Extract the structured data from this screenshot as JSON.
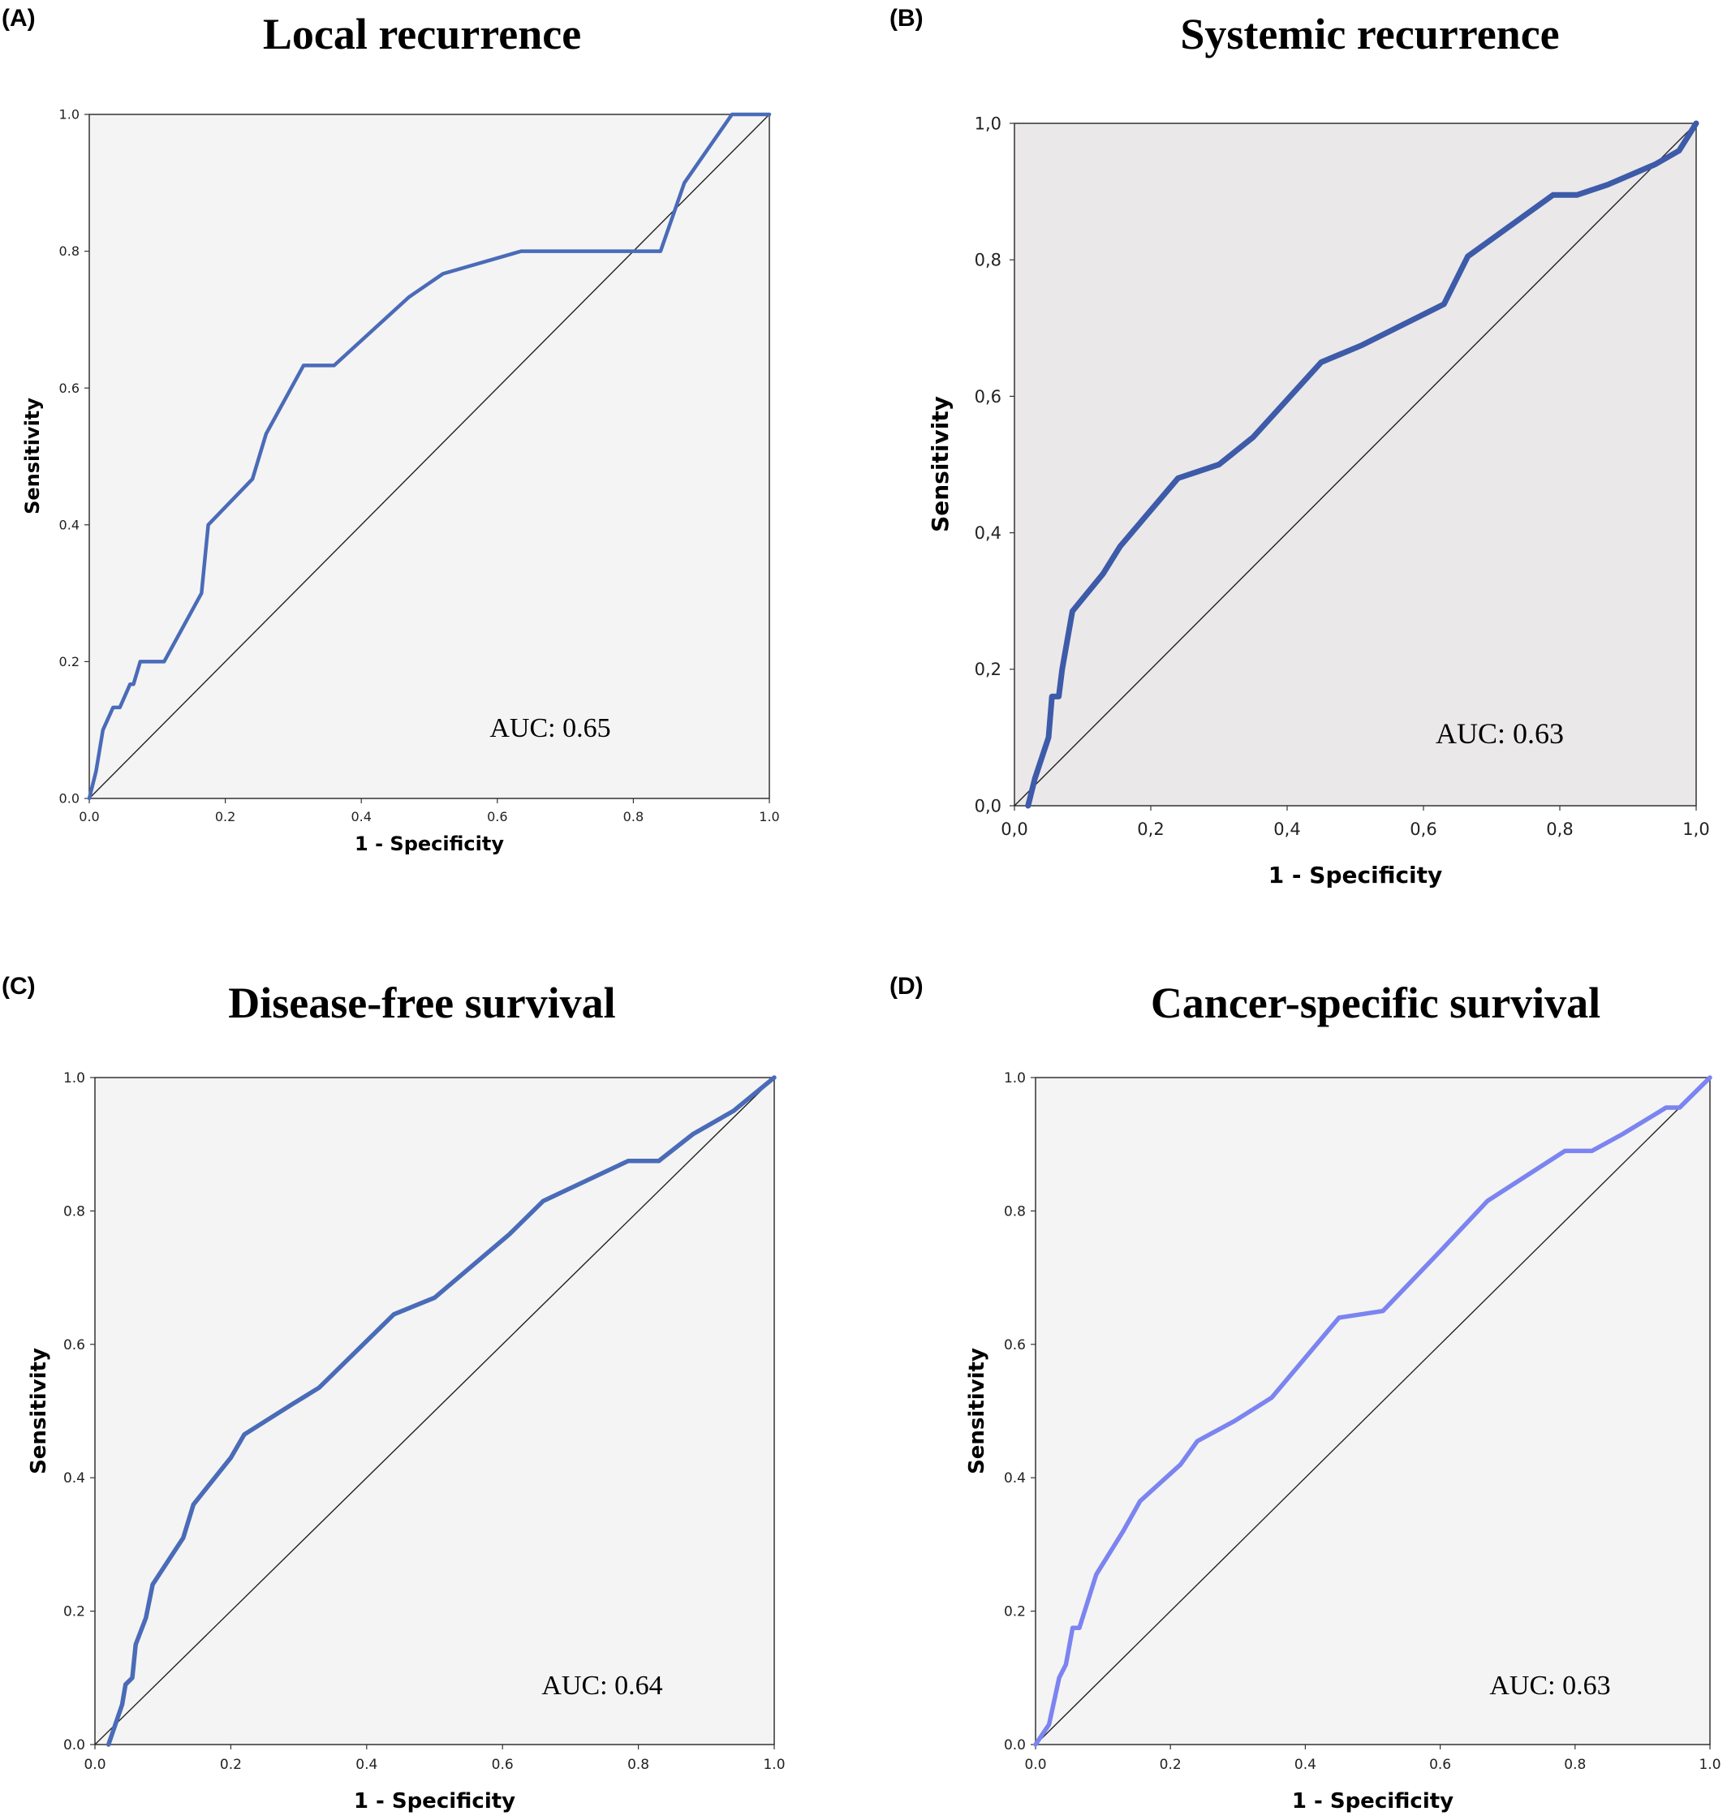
{
  "chart_data": [
    {
      "type": "line",
      "panel_label": "(A)",
      "title": "Local recurrence",
      "xlabel": "1 - Specificity",
      "ylabel": "Sensitivity",
      "xlim": [
        0,
        1
      ],
      "ylim": [
        0,
        1
      ],
      "xticks": [
        "0.0",
        "0.2",
        "0.4",
        "0.6",
        "0.8",
        "1.0"
      ],
      "yticks": [
        "0.0",
        "0.2",
        "0.4",
        "0.6",
        "0.8",
        "1.0"
      ],
      "annotation": "AUC: 0.65",
      "line_color": "#4a6bb8",
      "background": "#f4f4f4",
      "series": [
        {
          "x": [
            0,
            0.01,
            0.02,
            0.035,
            0.045,
            0.06,
            0.065,
            0.075,
            0.11,
            0.165,
            0.175,
            0.24,
            0.26,
            0.315,
            0.36,
            0.47,
            0.52,
            0.635,
            0.84,
            0.875,
            0.945,
            1.0
          ],
          "y": [
            0,
            0.04,
            0.1,
            0.133,
            0.133,
            0.167,
            0.167,
            0.2,
            0.2,
            0.3,
            0.4,
            0.467,
            0.533,
            0.633,
            0.633,
            0.733,
            0.767,
            0.8,
            0.8,
            0.9,
            1.0,
            1.0
          ]
        },
        {
          "x": [
            0,
            1
          ],
          "y": [
            0,
            1
          ]
        }
      ]
    },
    {
      "type": "line",
      "panel_label": "(B)",
      "title": "Systemic recurrence",
      "xlabel": "1 - Specificity",
      "ylabel": "Sensitivity",
      "xlim": [
        0,
        1
      ],
      "ylim": [
        0,
        1
      ],
      "xticks": [
        "0,0",
        "0,2",
        "0,4",
        "0,6",
        "0,8",
        "1,0"
      ],
      "yticks": [
        "0,0",
        "0,2",
        "0,4",
        "0,6",
        "0,8",
        "1,0"
      ],
      "annotation": "AUC: 0.63",
      "line_color": "#3d5ba8",
      "background": "#ebe8ea",
      "series": [
        {
          "x": [
            0.02,
            0.03,
            0.05,
            0.055,
            0.065,
            0.07,
            0.085,
            0.13,
            0.155,
            0.24,
            0.3,
            0.35,
            0.45,
            0.51,
            0.63,
            0.665,
            0.79,
            0.825,
            0.87,
            0.94,
            0.975,
            1.0
          ],
          "y": [
            0,
            0.04,
            0.1,
            0.16,
            0.16,
            0.2,
            0.285,
            0.34,
            0.38,
            0.48,
            0.5,
            0.54,
            0.65,
            0.675,
            0.735,
            0.805,
            0.895,
            0.895,
            0.91,
            0.94,
            0.96,
            1.0
          ]
        },
        {
          "x": [
            0,
            1
          ],
          "y": [
            0,
            1
          ]
        }
      ]
    },
    {
      "type": "line",
      "panel_label": "(C)",
      "title": "Disease-free survival",
      "xlabel": "1 - Specificity",
      "ylabel": "Sensitivity",
      "xlim": [
        0,
        1
      ],
      "ylim": [
        0,
        1
      ],
      "xticks": [
        "0.0",
        "0.2",
        "0.4",
        "0.6",
        "0.8",
        "1.0"
      ],
      "yticks": [
        "0.0",
        "0.2",
        "0.4",
        "0.6",
        "0.8",
        "1.0"
      ],
      "annotation": "AUC: 0.64",
      "line_color": "#4a6bb8",
      "background": "#f4f4f4",
      "series": [
        {
          "x": [
            0.02,
            0.04,
            0.045,
            0.055,
            0.06,
            0.075,
            0.085,
            0.13,
            0.145,
            0.2,
            0.22,
            0.29,
            0.33,
            0.44,
            0.5,
            0.61,
            0.66,
            0.785,
            0.83,
            0.88,
            0.94,
            1.0
          ],
          "y": [
            0,
            0.06,
            0.09,
            0.1,
            0.15,
            0.19,
            0.24,
            0.31,
            0.36,
            0.43,
            0.465,
            0.51,
            0.535,
            0.645,
            0.67,
            0.765,
            0.815,
            0.875,
            0.875,
            0.915,
            0.95,
            1.0
          ]
        },
        {
          "x": [
            0,
            1
          ],
          "y": [
            0,
            1
          ]
        }
      ]
    },
    {
      "type": "line",
      "panel_label": "(D)",
      "title": "Cancer-specific survival",
      "xlabel": "1 - Specificity",
      "ylabel": "Sensitivity",
      "xlim": [
        0,
        1
      ],
      "ylim": [
        0,
        1
      ],
      "xticks": [
        "0.0",
        "0.2",
        "0.4",
        "0.6",
        "0.8",
        "1.0"
      ],
      "yticks": [
        "0.0",
        "0.2",
        "0.4",
        "0.6",
        "0.8",
        "1.0"
      ],
      "annotation": "AUC: 0.63",
      "line_color": "#7b84f0",
      "background": "#f4f4f4",
      "series": [
        {
          "x": [
            0,
            0.02,
            0.035,
            0.045,
            0.055,
            0.065,
            0.09,
            0.13,
            0.155,
            0.215,
            0.24,
            0.295,
            0.35,
            0.45,
            0.515,
            0.605,
            0.67,
            0.785,
            0.825,
            0.87,
            0.935,
            0.955,
            1.0
          ],
          "y": [
            0,
            0.03,
            0.1,
            0.12,
            0.175,
            0.175,
            0.255,
            0.32,
            0.365,
            0.42,
            0.455,
            0.485,
            0.52,
            0.64,
            0.65,
            0.745,
            0.815,
            0.89,
            0.89,
            0.915,
            0.955,
            0.955,
            1.0
          ]
        },
        {
          "x": [
            0,
            1
          ],
          "y": [
            0,
            1
          ]
        }
      ]
    }
  ]
}
